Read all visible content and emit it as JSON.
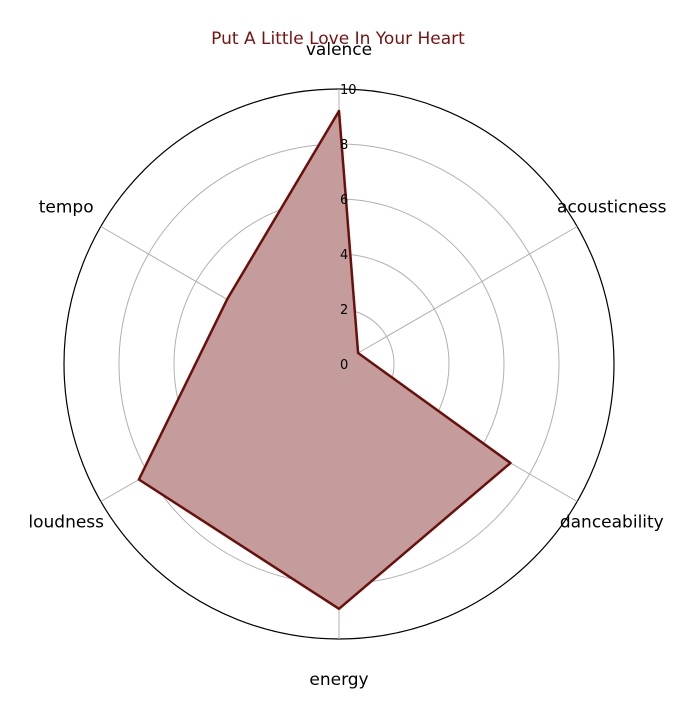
{
  "chart_data": {
    "type": "radar",
    "title": "Put A Little Love In Your Heart",
    "categories": [
      "valence",
      "acousticness",
      "danceability",
      "energy",
      "loudness",
      "tempo"
    ],
    "series": [
      {
        "values": [
          9.2,
          0.8,
          7.2,
          8.9,
          8.4,
          4.7
        ]
      }
    ],
    "rlim": [
      0,
      10
    ],
    "rticks": [
      0,
      2,
      4,
      6,
      8,
      10
    ],
    "grid": true,
    "colors": {
      "line": "#6b0f0a",
      "fill": "#c49c9b",
      "title": "#7a1010",
      "grid": "#b0b0b0",
      "outer": "#000000"
    }
  }
}
